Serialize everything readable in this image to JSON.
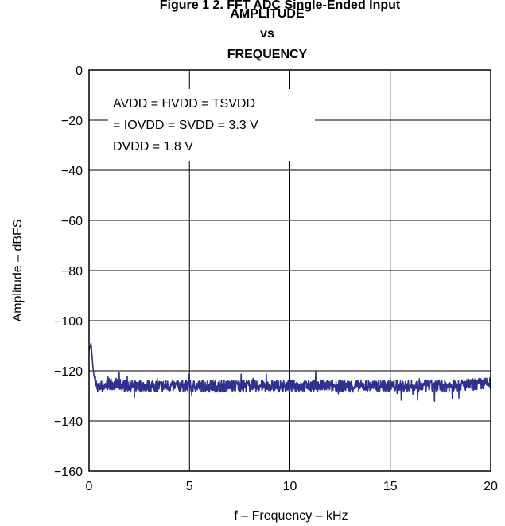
{
  "header": {
    "cut_off_caption": "Figure 1 2. FFT ADC Single-Ended Input"
  },
  "chart_data": {
    "type": "line",
    "title": [
      "AMPLITUDE",
      "vs",
      "FREQUENCY"
    ],
    "xlabel": "f – Frequency – kHz",
    "ylabel": "Amplitude – dBFS",
    "xlim": [
      0,
      20
    ],
    "ylim": [
      -160,
      0
    ],
    "xticks": [
      0,
      5,
      10,
      15,
      20
    ],
    "yticks": [
      0,
      -20,
      -40,
      -60,
      -80,
      -100,
      -120,
      -140,
      -160
    ],
    "xtick_labels": [
      "0",
      "5",
      "10",
      "15",
      "20"
    ],
    "ytick_labels": [
      "0",
      "−20",
      "−40",
      "−60",
      "−80",
      "−100",
      "−120",
      "−140",
      "−160"
    ],
    "grid": true,
    "annotation": [
      "AVDD = HVDD = TSVDD",
      "= IOVDD = SVDD = 3.3 V",
      "DVDD = 1.8 V"
    ],
    "line_color": "#2e3192",
    "series": [
      {
        "x": [
          0.0,
          0.1,
          0.15,
          0.2,
          0.25,
          0.3,
          0.4,
          0.5,
          0.6,
          0.8,
          1.0,
          2.0,
          4.0,
          6.0,
          8.0,
          10.0,
          12.0,
          14.0,
          16.0,
          18.0,
          20.0
        ],
        "y": [
          -112,
          -109,
          -114,
          -119,
          -122,
          -124,
          -126,
          -127,
          -126,
          -126,
          -125,
          -126,
          -126,
          -126,
          -126,
          -126,
          -126,
          -126,
          -126,
          -126,
          -125
        ],
        "noise_band_db": 3
      }
    ]
  }
}
